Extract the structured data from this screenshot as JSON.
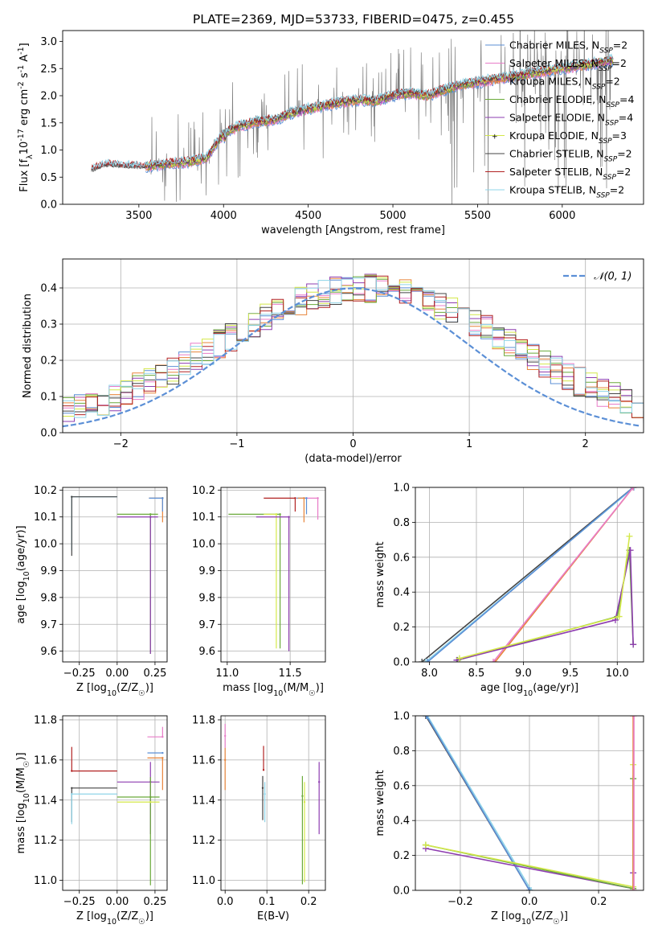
{
  "title": "PLATE=2369, MJD=53733, FIBERID=0475, z=0.455",
  "colors": {
    "chabrier_miles": "#5b8fd6",
    "salpeter_miles": "#e87cc8",
    "kroupa_miles": "#e8843a",
    "chabrier_elodie": "#6aaa3a",
    "salpeter_elodie": "#8e3db0",
    "kroupa_elodie": "#d4e84a",
    "chabrier_stelib": "#444444",
    "salpeter_stelib": "#b22222",
    "kroupa_stelib": "#8fd4e8",
    "data": "#808080",
    "normal": "#5b8fd6",
    "grid": "#b0b0b0"
  },
  "chart_data": [
    {
      "id": "spectrum",
      "type": "line",
      "xlabel": "wavelength [Angstrom, rest frame]",
      "ylabel": "Flux [f$_\\lambda$10$^{-17}$ erg cm$^{-2}$ s$^{-1}$ A$^{-1}$]",
      "xlim": [
        3050,
        6480
      ],
      "ylim": [
        0,
        3.2
      ],
      "xticks": [
        3500,
        4000,
        4500,
        5000,
        5500,
        6000
      ],
      "yticks": [
        0.0,
        0.5,
        1.0,
        1.5,
        2.0,
        2.5,
        3.0
      ],
      "legend_location": "upper right",
      "legend": [
        {
          "text": "Chabrier MILES, N",
          "sub": "SSP",
          "tail": "=2",
          "key": "chabrier_miles"
        },
        {
          "text": "Salpeter MILES, N",
          "sub": "SSP",
          "tail": "=2",
          "key": "salpeter_miles"
        },
        {
          "text": "Kroupa MILES, N",
          "sub": "SSP",
          "tail": "=2",
          "key": "kroupa_miles"
        },
        {
          "text": "Chabrier ELODIE, N",
          "sub": "SSP",
          "tail": "=4",
          "key": "chabrier_elodie"
        },
        {
          "text": "Salpeter ELODIE, N",
          "sub": "SSP",
          "tail": "=4",
          "key": "salpeter_elodie"
        },
        {
          "text": "Kroupa ELODIE, N",
          "sub": "SSP",
          "tail": "=3",
          "key": "kroupa_elodie"
        },
        {
          "text": "Chabrier STELIB, N",
          "sub": "SSP",
          "tail": "=2",
          "key": "chabrier_stelib"
        },
        {
          "text": "Salpeter STELIB, N",
          "sub": "SSP",
          "tail": "=2",
          "key": "salpeter_stelib"
        },
        {
          "text": "Kroupa STELIB, N",
          "sub": "SSP",
          "tail": "=2",
          "key": "kroupa_stelib"
        }
      ],
      "model_nodes": [
        [
          3220,
          0.62
        ],
        [
          3300,
          0.72
        ],
        [
          3400,
          0.7
        ],
        [
          3500,
          0.68
        ],
        [
          3600,
          0.72
        ],
        [
          3700,
          0.75
        ],
        [
          3800,
          0.78
        ],
        [
          3900,
          0.85
        ],
        [
          4000,
          1.3
        ],
        [
          4100,
          1.45
        ],
        [
          4200,
          1.52
        ],
        [
          4300,
          1.55
        ],
        [
          4400,
          1.68
        ],
        [
          4500,
          1.75
        ],
        [
          4600,
          1.82
        ],
        [
          4700,
          1.88
        ],
        [
          4800,
          1.92
        ],
        [
          4900,
          1.9
        ],
        [
          5000,
          2.0
        ],
        [
          5100,
          2.05
        ],
        [
          5200,
          2.0
        ],
        [
          5300,
          2.1
        ],
        [
          5400,
          2.2
        ],
        [
          5500,
          2.25
        ],
        [
          5600,
          2.3
        ],
        [
          5700,
          2.35
        ],
        [
          5800,
          2.4
        ],
        [
          5900,
          2.45
        ],
        [
          6000,
          2.5
        ],
        [
          6100,
          2.55
        ],
        [
          6200,
          2.6
        ],
        [
          6290,
          2.65
        ]
      ]
    },
    {
      "id": "residuals",
      "type": "step",
      "xlabel": "(data-model)/error",
      "ylabel": "Normed distribution",
      "xlim": [
        -2.5,
        2.5
      ],
      "ylim": [
        0,
        0.48
      ],
      "xticks": [
        -2,
        -1,
        0,
        1,
        2
      ],
      "yticks": [
        0.0,
        0.1,
        0.2,
        0.3,
        0.4
      ],
      "legend": [
        {
          "text": "𝒩(0, 1)",
          "key": "normal"
        }
      ],
      "legend_location": "upper right"
    },
    {
      "id": "age_vs_Z",
      "type": "errorbar",
      "xlabel": "Z [log$_{10}$(Z/Z$_\\odot$)]",
      "ylabel": "age  [log$_{10}$(age/yr)]",
      "xlim": [
        -0.36,
        0.33
      ],
      "ylim": [
        9.56,
        10.21
      ],
      "xticks": [
        -0.25,
        0.0,
        0.25
      ],
      "yticks": [
        9.6,
        9.7,
        9.8,
        9.9,
        10.0,
        10.1,
        10.2
      ],
      "points": [
        {
          "key": "kroupa_miles",
          "x": 0.3,
          "y": 10.17,
          "xerr": [
            0.09,
            0.0
          ],
          "yerr": [
            0.09,
            0.0
          ]
        },
        {
          "key": "chabrier_miles",
          "x": 0.3,
          "y": 10.17,
          "xerr": [
            0.09,
            0.0
          ],
          "yerr": [
            0.05,
            0.0
          ]
        },
        {
          "key": "chabrier_elodie",
          "x": 0.22,
          "y": 10.11,
          "xerr": [
            0.22,
            0.05
          ],
          "yerr": [
            0.52,
            0.0
          ]
        },
        {
          "key": "salpeter_elodie",
          "x": 0.22,
          "y": 10.1,
          "xerr": [
            0.22,
            0.05
          ],
          "yerr": [
            0.51,
            0.0
          ]
        },
        {
          "key": "kroupa_stelib",
          "x": -0.3,
          "y": 10.175,
          "xerr": [
            0.0,
            0.3
          ],
          "yerr": [
            0.2,
            0.0
          ]
        },
        {
          "key": "chabrier_stelib",
          "x": -0.3,
          "y": 10.175,
          "xerr": [
            0.0,
            0.3
          ],
          "yerr": [
            0.22,
            0.0
          ]
        }
      ]
    },
    {
      "id": "age_vs_mass",
      "type": "errorbar",
      "xlabel": "mass [log$_{10}$(M/M$_\\odot$)]",
      "xlim": [
        10.95,
        11.78
      ],
      "ylim": [
        9.56,
        10.21
      ],
      "xticks": [
        11.0,
        11.5
      ],
      "yticks": [
        9.6,
        9.7,
        9.8,
        9.9,
        10.0,
        10.1,
        10.2
      ],
      "points": [
        {
          "key": "salpeter_stelib",
          "x": 11.54,
          "y": 10.17,
          "xerr": [
            0.25,
            0.0
          ],
          "yerr": [
            0.05,
            0.0
          ]
        },
        {
          "key": "salpeter_miles",
          "x": 11.72,
          "y": 10.17,
          "xerr": [
            0.1,
            0.0
          ],
          "yerr": [
            0.08,
            0.0
          ]
        },
        {
          "key": "chabrier_miles",
          "x": 11.63,
          "y": 10.17,
          "xerr": [
            0.08,
            0.0
          ],
          "yerr": [
            0.06,
            0.0
          ]
        },
        {
          "key": "kroupa_miles",
          "x": 11.61,
          "y": 10.17,
          "xerr": [
            0.05,
            0.0
          ],
          "yerr": [
            0.09,
            0.0
          ]
        },
        {
          "key": "chabrier_elodie",
          "x": 11.42,
          "y": 10.11,
          "xerr": [
            0.41,
            0.0
          ],
          "yerr": [
            0.5,
            0.0
          ]
        },
        {
          "key": "kroupa_elodie",
          "x": 11.39,
          "y": 10.11,
          "xerr": [
            0.1,
            0.0
          ],
          "yerr": [
            0.5,
            0.0
          ]
        },
        {
          "key": "salpeter_elodie",
          "x": 11.49,
          "y": 10.1,
          "xerr": [
            0.26,
            0.0
          ],
          "yerr": [
            0.5,
            0.0
          ]
        }
      ]
    },
    {
      "id": "weight_vs_age",
      "type": "line",
      "xlabel": "age  [log$_{10}$(age/yr)]",
      "ylabel": "mass weight",
      "xlim": [
        7.85,
        10.28
      ],
      "ylim": [
        0,
        1.0
      ],
      "xticks": [
        8.0,
        8.5,
        9.0,
        9.5,
        10.0
      ],
      "yticks": [
        0.0,
        0.2,
        0.4,
        0.6,
        0.8,
        1.0
      ],
      "series": [
        {
          "key": "chabrier_stelib",
          "x": [
            7.92,
            10.17
          ],
          "y": [
            0.0,
            1.0
          ]
        },
        {
          "key": "kroupa_stelib",
          "x": [
            7.96,
            10.18
          ],
          "y": [
            0.0,
            1.0
          ]
        },
        {
          "key": "chabrier_miles",
          "x": [
            7.98,
            10.17
          ],
          "y": [
            0.0,
            1.0
          ]
        },
        {
          "key": "kroupa_miles",
          "x": [
            8.7,
            10.17
          ],
          "y": [
            0.0,
            1.0
          ]
        },
        {
          "key": "salpeter_miles",
          "x": [
            8.68,
            10.17
          ],
          "y": [
            0.0,
            1.0
          ]
        },
        {
          "key": "chabrier_elodie",
          "x": [
            8.3,
            10.0,
            10.13,
            10.17
          ],
          "y": [
            0.01,
            0.26,
            0.64,
            0.1
          ]
        },
        {
          "key": "salpeter_elodie",
          "x": [
            8.29,
            9.98,
            10.14,
            10.17
          ],
          "y": [
            0.01,
            0.24,
            0.64,
            0.1
          ]
        },
        {
          "key": "kroupa_elodie",
          "x": [
            8.32,
            10.02,
            10.13
          ],
          "y": [
            0.02,
            0.26,
            0.72
          ]
        }
      ]
    },
    {
      "id": "mass_vs_Z",
      "type": "errorbar",
      "xlabel": "Z [log$_{10}$(Z/Z$_\\odot$)]",
      "ylabel": "mass [log$_{10}$(M/M$_\\odot$)]",
      "xlim": [
        -0.36,
        0.33
      ],
      "ylim": [
        10.95,
        11.82
      ],
      "xticks": [
        -0.25,
        0.0,
        0.25
      ],
      "yticks": [
        11.0,
        11.2,
        11.4,
        11.6,
        11.8
      ],
      "points": [
        {
          "key": "salpeter_stelib",
          "x": -0.3,
          "y": 11.545,
          "xerr": [
            0.0,
            0.3
          ],
          "yerr": [
            0.0,
            0.12
          ]
        },
        {
          "key": "chabrier_stelib",
          "x": -0.3,
          "y": 11.46,
          "xerr": [
            0.0,
            0.3
          ],
          "yerr": [
            0.17,
            0.0
          ]
        },
        {
          "key": "kroupa_stelib",
          "x": -0.3,
          "y": 11.43,
          "xerr": [
            0.0,
            0.3
          ],
          "yerr": [
            0.15,
            0.0
          ]
        },
        {
          "key": "salpeter_miles",
          "x": 0.3,
          "y": 11.715,
          "xerr": [
            0.1,
            0.0
          ],
          "yerr": [
            0.0,
            0.05
          ]
        },
        {
          "key": "chabrier_miles",
          "x": 0.3,
          "y": 11.635,
          "xerr": [
            0.1,
            0.0
          ],
          "yerr": [
            0.0,
            0.0
          ]
        },
        {
          "key": "kroupa_miles",
          "x": 0.3,
          "y": 11.61,
          "xerr": [
            0.1,
            0.0
          ],
          "yerr": [
            0.16,
            0.0
          ]
        },
        {
          "key": "salpeter_elodie",
          "x": 0.22,
          "y": 11.49,
          "xerr": [
            0.22,
            0.06
          ],
          "yerr": [
            0.26,
            0.1
          ]
        },
        {
          "key": "chabrier_elodie",
          "x": 0.22,
          "y": 11.415,
          "xerr": [
            0.22,
            0.06
          ],
          "yerr": [
            0.44,
            0.1
          ]
        },
        {
          "key": "kroupa_elodie",
          "x": 0.22,
          "y": 11.39,
          "xerr": [
            0.22,
            0.06
          ],
          "yerr": [
            0.0,
            0.0
          ]
        }
      ]
    },
    {
      "id": "mass_vs_ebv",
      "type": "errorbar",
      "xlabel": "E(B-V)",
      "xlim": [
        -0.01,
        0.24
      ],
      "ylim": [
        10.95,
        11.82
      ],
      "xticks": [
        0.0,
        0.1,
        0.2
      ],
      "yticks": [
        11.0,
        11.2,
        11.4,
        11.6,
        11.8
      ],
      "points": [
        {
          "key": "salpeter_miles",
          "x": 0.0,
          "y": 11.72,
          "yerr": [
            0.06,
            0.06
          ]
        },
        {
          "key": "kroupa_miles",
          "x": 0.0,
          "y": 11.6,
          "yerr": [
            0.15,
            0.06
          ]
        },
        {
          "key": "salpeter_stelib",
          "x": 0.092,
          "y": 11.55,
          "yerr": [
            0.0,
            0.12
          ]
        },
        {
          "key": "chabrier_stelib",
          "x": 0.09,
          "y": 11.46,
          "yerr": [
            0.16,
            0.06
          ]
        },
        {
          "key": "kroupa_stelib",
          "x": 0.095,
          "y": 11.43,
          "yerr": [
            0.14,
            0.06
          ]
        },
        {
          "key": "chabrier_elodie",
          "x": 0.185,
          "y": 11.42,
          "yerr": [
            0.44,
            0.1
          ]
        },
        {
          "key": "kroupa_elodie",
          "x": 0.19,
          "y": 11.39,
          "yerr": [
            0.4,
            0.1
          ]
        },
        {
          "key": "salpeter_elodie",
          "x": 0.225,
          "y": 11.49,
          "yerr": [
            0.26,
            0.1
          ]
        }
      ]
    },
    {
      "id": "weight_vs_Z",
      "type": "line",
      "xlabel": "Z [log$_{10}$(Z/Z$_\\odot$)]",
      "ylabel": "mass weight",
      "xlim": [
        -0.33,
        0.33
      ],
      "ylim": [
        0,
        1.0
      ],
      "xticks": [
        -0.2,
        0.0,
        0.2
      ],
      "yticks": [
        0.0,
        0.2,
        0.4,
        0.6,
        0.8,
        1.0
      ],
      "series": [
        {
          "key": "chabrier_stelib",
          "x": [
            -0.3,
            0.0
          ],
          "y": [
            1.0,
            0.0
          ]
        },
        {
          "key": "kroupa_stelib",
          "x": [
            -0.295,
            0.005
          ],
          "y": [
            1.0,
            0.0
          ]
        },
        {
          "key": "chabrier_miles",
          "x": [
            -0.298,
            0.0
          ],
          "y": [
            1.0,
            0.0
          ]
        },
        {
          "key": "salpeter_elodie",
          "x": [
            -0.3,
            0.3,
            0.3,
            0.3
          ],
          "y": [
            0.24,
            0.01,
            0.64,
            0.1
          ]
        },
        {
          "key": "chabrier_elodie",
          "x": [
            -0.3,
            0.3,
            0.3
          ],
          "y": [
            0.26,
            0.01,
            0.64
          ]
        },
        {
          "key": "kroupa_elodie",
          "x": [
            -0.3,
            0.3,
            0.3
          ],
          "y": [
            0.26,
            0.02,
            0.72
          ]
        },
        {
          "key": "kroupa_miles",
          "x": [
            0.3,
            0.3
          ],
          "y": [
            0.0,
            1.0
          ]
        },
        {
          "key": "salpeter_miles",
          "x": [
            0.302,
            0.302
          ],
          "y": [
            0.0,
            1.0
          ]
        }
      ]
    }
  ]
}
